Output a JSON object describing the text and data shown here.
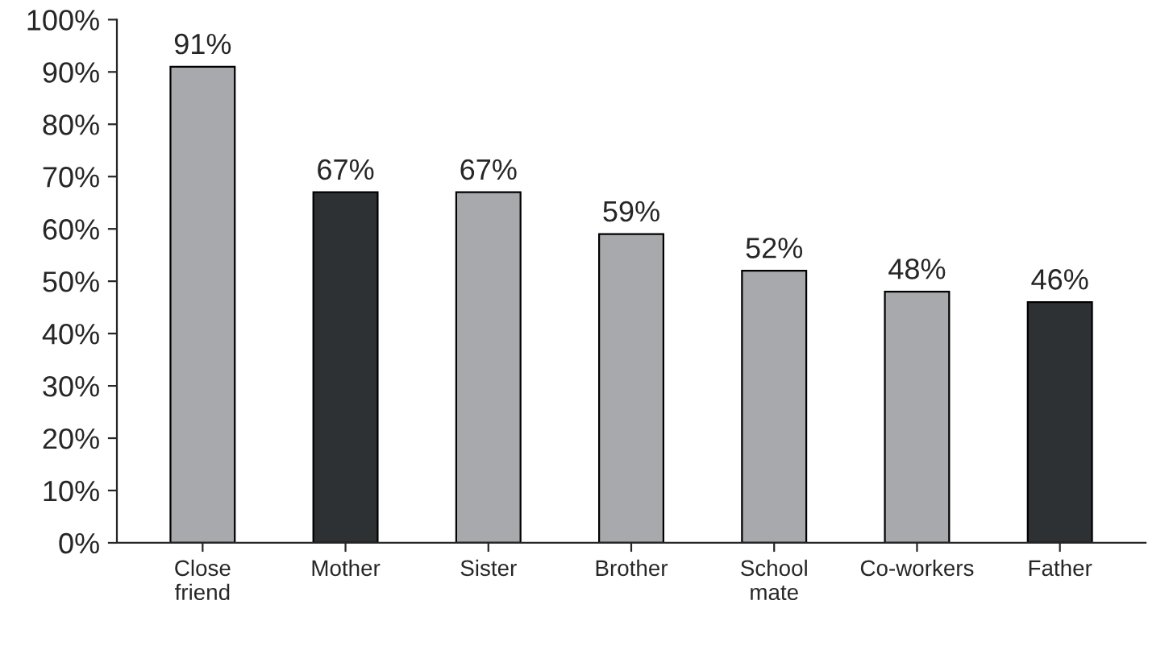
{
  "chart_data": {
    "type": "bar",
    "categories": [
      "Close\nfriend",
      "Mother",
      "Sister",
      "Brother",
      "School\nmate",
      "Co-workers",
      "Father"
    ],
    "values": [
      91,
      67,
      67,
      59,
      52,
      48,
      46
    ],
    "value_labels": [
      "91%",
      "67%",
      "67%",
      "59%",
      "52%",
      "48%",
      "46%"
    ],
    "colors": [
      "#a7a9ac",
      "#2e3134",
      "#a7a9ac",
      "#a7a9ac",
      "#a7a9ac",
      "#a7a9ac",
      "#2e3134"
    ],
    "ylim": [
      0,
      100
    ],
    "yticks": [
      {
        "value": 0,
        "label": "0%"
      },
      {
        "value": 10,
        "label": "10%"
      },
      {
        "value": 20,
        "label": "20%"
      },
      {
        "value": 30,
        "label": "30%"
      },
      {
        "value": 40,
        "label": "40%"
      },
      {
        "value": 50,
        "label": "50%"
      },
      {
        "value": 60,
        "label": "60%"
      },
      {
        "value": 70,
        "label": "70%"
      },
      {
        "value": 80,
        "label": "80%"
      },
      {
        "value": 90,
        "label": "90%"
      },
      {
        "value": 100,
        "label": "100%"
      }
    ],
    "grid": false
  }
}
